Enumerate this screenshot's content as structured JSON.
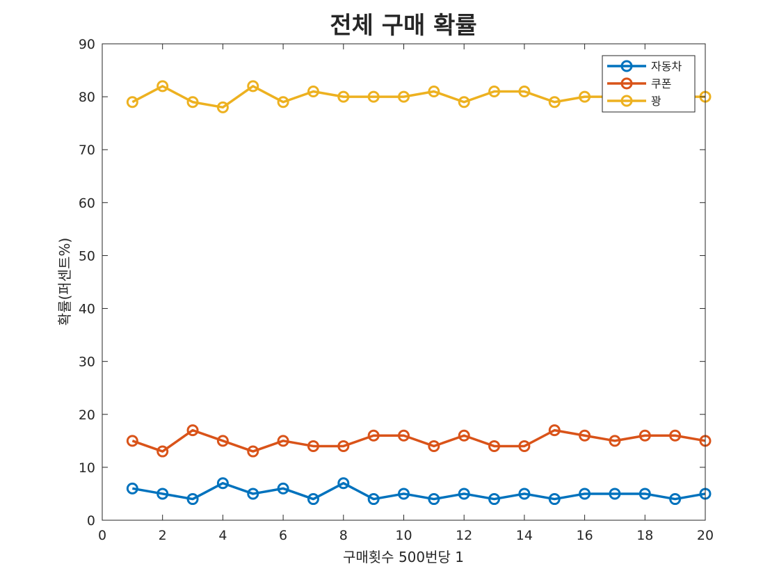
{
  "chart_data": {
    "type": "line",
    "title": "전체 구매 확률",
    "xlabel": "구매횟수 500번당 1",
    "ylabel": "확률(퍼센트%)",
    "xlim": [
      0,
      20
    ],
    "ylim": [
      0,
      90
    ],
    "xticks": [
      0,
      2,
      4,
      6,
      8,
      10,
      12,
      14,
      16,
      18,
      20
    ],
    "yticks": [
      0,
      10,
      20,
      30,
      40,
      50,
      60,
      70,
      80,
      90
    ],
    "grid": false,
    "legend_position": "top-right",
    "marker": "circle",
    "x": [
      1,
      2,
      3,
      4,
      5,
      6,
      7,
      8,
      9,
      10,
      11,
      12,
      13,
      14,
      15,
      16,
      17,
      18,
      19,
      20
    ],
    "series": [
      {
        "name": "자동차",
        "color": "#0072BD",
        "values": [
          6,
          5,
          4,
          7,
          5,
          6,
          4,
          7,
          4,
          5,
          4,
          5,
          4,
          5,
          4,
          5,
          5,
          5,
          4,
          5
        ]
      },
      {
        "name": "쿠폰",
        "color": "#D95319",
        "values": [
          15,
          13,
          17,
          15,
          13,
          15,
          14,
          14,
          16,
          16,
          14,
          16,
          14,
          14,
          17,
          16,
          15,
          16,
          16,
          15
        ]
      },
      {
        "name": "꽝",
        "color": "#EDB120",
        "values": [
          79,
          82,
          79,
          78,
          82,
          79,
          81,
          80,
          80,
          80,
          81,
          79,
          81,
          81,
          79,
          80,
          80,
          79,
          80,
          80
        ]
      }
    ]
  }
}
